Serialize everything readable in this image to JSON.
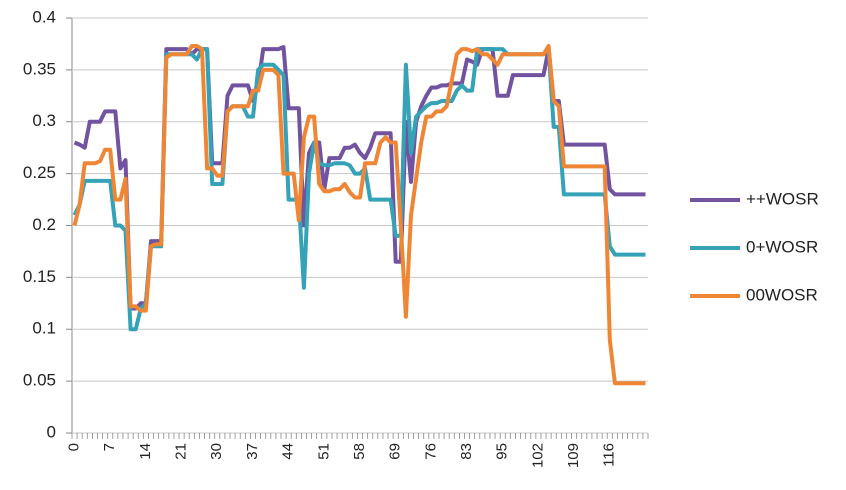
{
  "chart_data": {
    "type": "line",
    "categories": [
      "0",
      null,
      null,
      null,
      null,
      null,
      null,
      "7",
      null,
      null,
      null,
      null,
      null,
      null,
      "14",
      null,
      null,
      null,
      null,
      null,
      null,
      "21",
      null,
      null,
      null,
      null,
      null,
      null,
      "30",
      null,
      null,
      null,
      null,
      null,
      null,
      "37",
      null,
      null,
      null,
      null,
      null,
      null,
      "44",
      null,
      null,
      null,
      null,
      null,
      null,
      "51",
      null,
      null,
      null,
      null,
      null,
      null,
      "58",
      null,
      null,
      null,
      null,
      null,
      null,
      "69",
      null,
      null,
      null,
      null,
      null,
      null,
      "76",
      null,
      null,
      null,
      null,
      null,
      null,
      "83",
      null,
      null,
      null,
      null,
      null,
      null,
      "95",
      null,
      null,
      null,
      null,
      null,
      null,
      "102",
      null,
      null,
      null,
      null,
      null,
      null,
      "109",
      null,
      null,
      null,
      null,
      null,
      null,
      "116",
      null,
      null,
      null,
      null,
      null,
      null,
      null
    ],
    "series": [
      {
        "name": "++WOSR",
        "color": "#7153a0",
        "values": [
          0.28,
          0.278,
          0.275,
          0.3,
          0.3,
          0.3,
          0.31,
          0.31,
          0.31,
          0.255,
          0.263,
          0.12,
          0.12,
          0.125,
          0.125,
          0.185,
          0.185,
          0.185,
          0.37,
          0.37,
          0.37,
          0.37,
          0.37,
          0.365,
          0.37,
          0.37,
          0.37,
          0.26,
          0.26,
          0.26,
          0.325,
          0.335,
          0.335,
          0.335,
          0.335,
          0.32,
          0.335,
          0.37,
          0.37,
          0.37,
          0.37,
          0.372,
          0.313,
          0.313,
          0.313,
          0.2,
          0.27,
          0.28,
          0.28,
          0.235,
          0.265,
          0.265,
          0.265,
          0.275,
          0.275,
          0.278,
          0.27,
          0.265,
          0.275,
          0.289,
          0.289,
          0.289,
          0.289,
          0.165,
          0.165,
          0.3,
          0.242,
          0.3,
          0.315,
          0.325,
          0.333,
          0.333,
          0.335,
          0.335,
          0.337,
          0.337,
          0.337,
          0.36,
          0.358,
          0.355,
          0.37,
          0.37,
          0.37,
          0.325,
          0.325,
          0.325,
          0.345,
          0.345,
          0.345,
          0.345,
          0.345,
          0.345,
          0.345,
          0.37,
          0.32,
          0.32,
          0.278,
          0.278,
          0.278,
          0.278,
          0.278,
          0.278,
          0.278,
          0.278,
          0.278,
          0.235,
          0.23,
          0.23,
          0.23,
          0.23,
          0.23,
          0.23,
          0.23
        ]
      },
      {
        "name": "0+WOSR",
        "color": "#35a2b8",
        "values": [
          0.21,
          0.22,
          0.243,
          0.243,
          0.243,
          0.243,
          0.243,
          0.243,
          0.2,
          0.2,
          0.195,
          0.1,
          0.1,
          0.12,
          0.125,
          0.18,
          0.18,
          0.18,
          0.365,
          0.365,
          0.365,
          0.365,
          0.365,
          0.365,
          0.36,
          0.37,
          0.37,
          0.24,
          0.24,
          0.24,
          0.31,
          0.315,
          0.315,
          0.315,
          0.305,
          0.305,
          0.35,
          0.355,
          0.355,
          0.355,
          0.35,
          0.345,
          0.225,
          0.225,
          0.225,
          0.14,
          0.25,
          0.28,
          0.26,
          0.258,
          0.258,
          0.26,
          0.26,
          0.26,
          0.258,
          0.25,
          0.25,
          0.255,
          0.225,
          0.225,
          0.225,
          0.225,
          0.225,
          0.19,
          0.19,
          0.355,
          0.27,
          0.305,
          0.31,
          0.315,
          0.318,
          0.318,
          0.32,
          0.32,
          0.32,
          0.33,
          0.335,
          0.33,
          0.33,
          0.37,
          0.37,
          0.37,
          0.37,
          0.37,
          0.37,
          0.365,
          0.365,
          0.365,
          0.365,
          0.365,
          0.365,
          0.365,
          0.365,
          0.37,
          0.295,
          0.295,
          0.23,
          0.23,
          0.23,
          0.23,
          0.23,
          0.23,
          0.23,
          0.23,
          0.23,
          0.18,
          0.172,
          0.172,
          0.172,
          0.172,
          0.172,
          0.172,
          0.172
        ]
      },
      {
        "name": "00WOSR",
        "color": "#ef8636",
        "values": [
          0.2,
          0.22,
          0.26,
          0.26,
          0.26,
          0.262,
          0.273,
          0.273,
          0.225,
          0.225,
          0.245,
          0.122,
          0.122,
          0.118,
          0.118,
          0.18,
          0.182,
          0.182,
          0.362,
          0.365,
          0.365,
          0.365,
          0.365,
          0.373,
          0.373,
          0.37,
          0.255,
          0.255,
          0.248,
          0.248,
          0.31,
          0.315,
          0.315,
          0.315,
          0.315,
          0.33,
          0.33,
          0.35,
          0.35,
          0.35,
          0.345,
          0.25,
          0.25,
          0.25,
          0.205,
          0.285,
          0.305,
          0.305,
          0.24,
          0.233,
          0.233,
          0.235,
          0.235,
          0.24,
          0.232,
          0.227,
          0.227,
          0.26,
          0.26,
          0.26,
          0.28,
          0.285,
          0.28,
          0.28,
          0.2,
          0.112,
          0.21,
          0.245,
          0.28,
          0.305,
          0.305,
          0.31,
          0.31,
          0.315,
          0.34,
          0.365,
          0.37,
          0.37,
          0.368,
          0.37,
          0.365,
          0.365,
          0.36,
          0.355,
          0.365,
          0.365,
          0.365,
          0.365,
          0.365,
          0.365,
          0.365,
          0.365,
          0.365,
          0.373,
          0.32,
          0.315,
          0.257,
          0.257,
          0.257,
          0.257,
          0.257,
          0.257,
          0.257,
          0.257,
          0.257,
          0.09,
          0.048,
          0.048,
          0.048,
          0.048,
          0.048,
          0.048,
          0.048
        ]
      }
    ],
    "ylim": [
      0,
      0.4
    ],
    "yticks": [
      0,
      0.05,
      0.1,
      0.15,
      0.2,
      0.25,
      0.3,
      0.35,
      0.4
    ],
    "grid": true,
    "legend": "right"
  }
}
